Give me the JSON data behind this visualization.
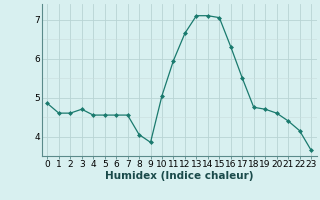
{
  "x": [
    0,
    1,
    2,
    3,
    4,
    5,
    6,
    7,
    8,
    9,
    10,
    11,
    12,
    13,
    14,
    15,
    16,
    17,
    18,
    19,
    20,
    21,
    22,
    23
  ],
  "y": [
    4.85,
    4.6,
    4.6,
    4.7,
    4.55,
    4.55,
    4.55,
    4.55,
    4.05,
    3.85,
    5.05,
    5.95,
    6.65,
    7.1,
    7.1,
    7.05,
    6.3,
    5.5,
    4.75,
    4.7,
    4.6,
    4.4,
    4.15,
    3.65
  ],
  "line_color": "#1a7a6e",
  "marker": "D",
  "marker_size": 2.0,
  "bg_color": "#d8f0f0",
  "xlabel": "Humidex (Indice chaleur)",
  "xlabel_fontsize": 7.5,
  "ylabel_ticks": [
    4,
    5,
    6,
    7
  ],
  "xtick_labels": [
    "0",
    "1",
    "2",
    "3",
    "4",
    "5",
    "6",
    "7",
    "8",
    "9",
    "10",
    "11",
    "12",
    "13",
    "14",
    "15",
    "16",
    "17",
    "18",
    "19",
    "20",
    "21",
    "22",
    "23"
  ],
  "xlim": [
    -0.5,
    23.5
  ],
  "ylim": [
    3.5,
    7.4
  ],
  "tick_fontsize": 6.5,
  "grid_major_color": "#b8d4d4",
  "grid_minor_color": "#c8dede",
  "spine_color": "#5a8a8a"
}
